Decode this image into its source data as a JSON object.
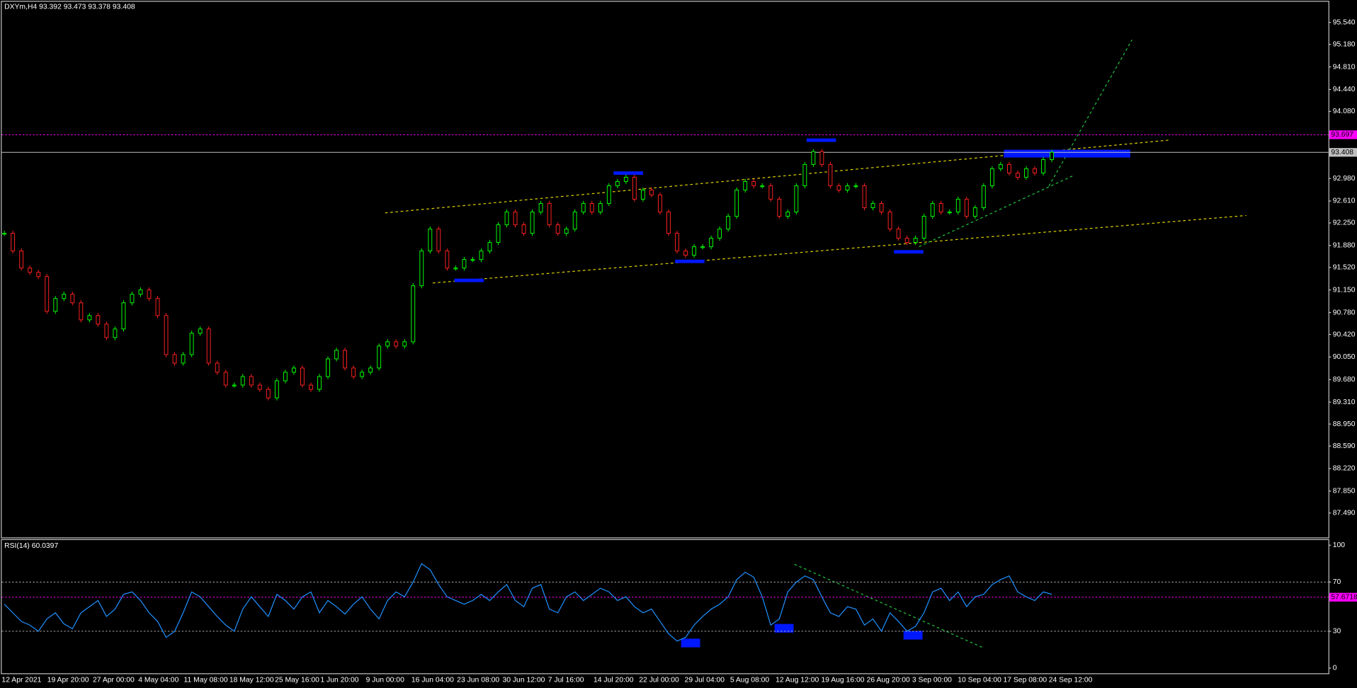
{
  "chart_data": [
    {
      "type": "candlestick",
      "title": "DXYm,H4  93.392 93.473 93.378 93.408",
      "up_color": "#00ff00",
      "down_color": "#ff2020",
      "series": [
        {
          "values": [
            92.08,
            91.79,
            91.51,
            91.44,
            91.37,
            90.8,
            91.01,
            91.08,
            90.94,
            90.66,
            90.73,
            90.59,
            90.37,
            90.51,
            90.94,
            91.08,
            91.15,
            91.01,
            90.73,
            90.09,
            89.95,
            90.09,
            90.44,
            90.51,
            89.95,
            89.8,
            89.59,
            89.59,
            89.73,
            89.59,
            89.52,
            89.38,
            89.66,
            89.8,
            89.87,
            89.59,
            89.52,
            89.73,
            90.02,
            90.16,
            89.87,
            89.73,
            89.8,
            89.87,
            90.23,
            90.3,
            90.23,
            90.3,
            91.22,
            91.79,
            92.15,
            91.79,
            91.51,
            91.51,
            91.65,
            91.65,
            91.79,
            91.93,
            92.22,
            92.43,
            92.22,
            92.08,
            92.43,
            92.57,
            92.22,
            92.08,
            92.15,
            92.43,
            92.57,
            92.43,
            92.57,
            92.86,
            92.93,
            93.0,
            92.64,
            92.79,
            92.71,
            92.43,
            92.08,
            91.79,
            91.72,
            91.86,
            91.86,
            92.0,
            92.15,
            92.36,
            92.79,
            92.93,
            92.86,
            92.86,
            92.64,
            92.36,
            92.43,
            92.86,
            93.21,
            93.42,
            93.21,
            92.86,
            92.79,
            92.86,
            92.86,
            92.5,
            92.57,
            92.43,
            92.15,
            92.0,
            91.93,
            92.0,
            92.36,
            92.57,
            92.43,
            92.43,
            92.64,
            92.36,
            92.5,
            92.86,
            93.14,
            93.21,
            93.07,
            93.0,
            93.14,
            93.07,
            93.29,
            93.41
          ]
        }
      ],
      "ylim": [
        87.09,
        95.88
      ],
      "yticks": [
        {
          "value": 95.54,
          "label": "95.540"
        },
        {
          "value": 95.18,
          "label": "95.180"
        },
        {
          "value": 94.81,
          "label": "94.810"
        },
        {
          "value": 94.44,
          "label": "94.440"
        },
        {
          "value": 94.08,
          "label": "94.080"
        },
        {
          "value": 92.98,
          "label": "92.980"
        },
        {
          "value": 92.61,
          "label": "92.610"
        },
        {
          "value": 92.25,
          "label": "92.250"
        },
        {
          "value": 91.88,
          "label": "91.880"
        },
        {
          "value": 91.52,
          "label": "91.520"
        },
        {
          "value": 91.15,
          "label": "91.150"
        },
        {
          "value": 90.78,
          "label": "90.780"
        },
        {
          "value": 90.42,
          "label": "90.420"
        },
        {
          "value": 90.05,
          "label": "90.050"
        },
        {
          "value": 89.68,
          "label": "89.680"
        },
        {
          "value": 89.31,
          "label": "89.310"
        },
        {
          "value": 88.95,
          "label": "88.950"
        },
        {
          "value": 88.59,
          "label": "88.590"
        },
        {
          "value": 88.22,
          "label": "88.220"
        },
        {
          "value": 87.85,
          "label": "87.850"
        },
        {
          "value": 87.49,
          "label": "87.490"
        }
      ],
      "levels": [
        {
          "value": 93.697,
          "label": "93.697",
          "color": "#ff00ff"
        },
        {
          "value": 93.408,
          "label": "93.408",
          "color": "#c0c0c0"
        }
      ],
      "time_labels": [
        "12 Apr 2021",
        "19 Apr 20:00",
        "27 Apr 00:00",
        "4 May 04:00",
        "11 May 08:00",
        "18 May 12:00",
        "25 May 16:00",
        "1 Jun 20:00",
        "9 Jun 00:00",
        "16 Jun 04:00",
        "23 Jun 08:00",
        "30 Jun 12:00",
        "7 Jul 16:00",
        "14 Jul 20:00",
        "22 Jul 00:00",
        "29 Jul 04:00",
        "5 Aug 08:00",
        "12 Aug 12:00",
        "19 Aug 16:00",
        "26 Aug 20:00",
        "3 Sep 00:00",
        "10 Sep 04:00",
        "17 Sep 08:00",
        "24 Sep 12:00"
      ]
    },
    {
      "type": "line",
      "title": "RSI(14) 60.0397",
      "series": [
        {
          "color": "#1e90ff",
          "values": [
            52,
            45,
            38,
            35,
            30,
            40,
            45,
            36,
            32,
            45,
            50,
            55,
            42,
            48,
            60,
            62,
            55,
            45,
            38,
            25,
            30,
            45,
            62,
            58,
            50,
            42,
            35,
            30,
            48,
            58,
            50,
            42,
            60,
            55,
            48,
            58,
            62,
            45,
            55,
            50,
            44,
            52,
            58,
            48,
            40,
            55,
            62,
            58,
            70,
            85,
            80,
            68,
            58,
            55,
            52,
            55,
            60,
            55,
            62,
            68,
            55,
            50,
            65,
            68,
            48,
            45,
            58,
            62,
            55,
            60,
            65,
            62,
            55,
            58,
            50,
            45,
            48,
            38,
            28,
            22,
            25,
            35,
            42,
            48,
            52,
            58,
            72,
            78,
            74,
            58,
            35,
            40,
            62,
            70,
            75,
            72,
            58,
            45,
            42,
            50,
            48,
            35,
            40,
            30,
            45,
            38,
            30,
            34,
            45,
            62,
            65,
            55,
            62,
            50,
            58,
            60,
            68,
            72,
            75,
            62,
            58,
            55,
            62,
            60.04
          ]
        }
      ],
      "ylim": [
        -4.2,
        104.2
      ],
      "yticks": [
        0,
        30,
        70,
        100
      ],
      "grid_ticks": [
        30,
        70
      ],
      "levels": [
        {
          "value": 57.6718,
          "label": "57.6718",
          "color": "#ff00ff"
        }
      ]
    }
  ]
}
